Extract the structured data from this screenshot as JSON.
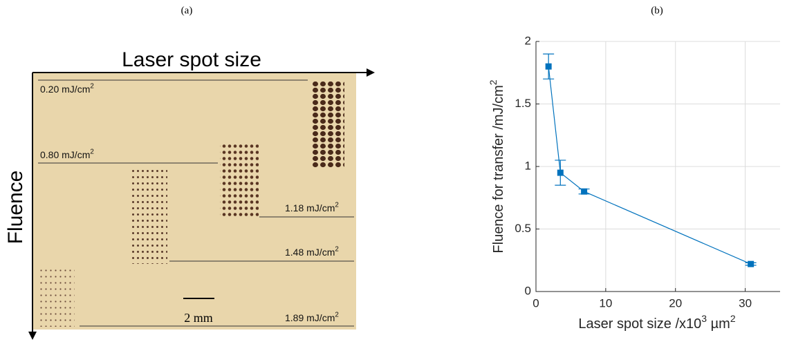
{
  "photo": {
    "label": "(a)",
    "top_axis": "Laser spot size",
    "side_axis": "Fluence",
    "fluence_labels": [
      [
        "0.20 mJ/cm",
        "2"
      ],
      [
        "0.80 mJ/cm",
        "2"
      ],
      [
        "1.18 mJ/cm",
        "2"
      ],
      [
        "1.48 mJ/cm",
        "2"
      ],
      [
        "1.89 mJ/cm",
        "2"
      ]
    ],
    "scale_bar": "2 mm"
  },
  "chart_data": {
    "type": "errorbar",
    "label": "(b)",
    "xlabel": [
      "Laser spot size /x10",
      "3",
      " µm",
      "2"
    ],
    "ylabel": [
      "Fluence for transfer /mJ/cm",
      "2"
    ],
    "x": [
      1.8,
      3.5,
      6.9,
      30.8
    ],
    "values": [
      1.8,
      0.95,
      0.8,
      0.22
    ],
    "errors": [
      0.1,
      0.1,
      0.02,
      0.01
    ],
    "color": "#0072bd",
    "xlim": [
      0,
      35
    ],
    "ylim": [
      0,
      2
    ],
    "xticks": [
      0,
      10,
      20,
      30
    ],
    "yticks": [
      0,
      0.5,
      1,
      1.5,
      2
    ],
    "grid": true
  }
}
